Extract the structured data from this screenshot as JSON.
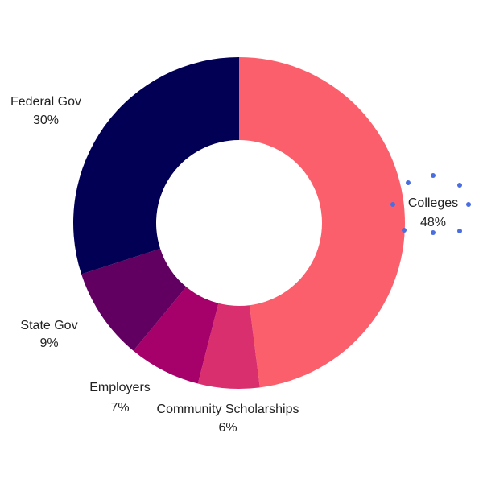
{
  "chart_data": {
    "type": "pie",
    "donut": true,
    "title": "",
    "categories": [
      "Colleges",
      "Community Scholarships",
      "Employers",
      "State Gov",
      "Federal Gov"
    ],
    "values": [
      48,
      6,
      7,
      9,
      30
    ],
    "value_labels": [
      "48%",
      "6%",
      "7%",
      "9%",
      "30%"
    ],
    "colors": [
      "#fc5f6c",
      "#d92f6e",
      "#a6006b",
      "#620062",
      "#020055"
    ],
    "legend": "none",
    "selected_slice": "Colleges"
  }
}
